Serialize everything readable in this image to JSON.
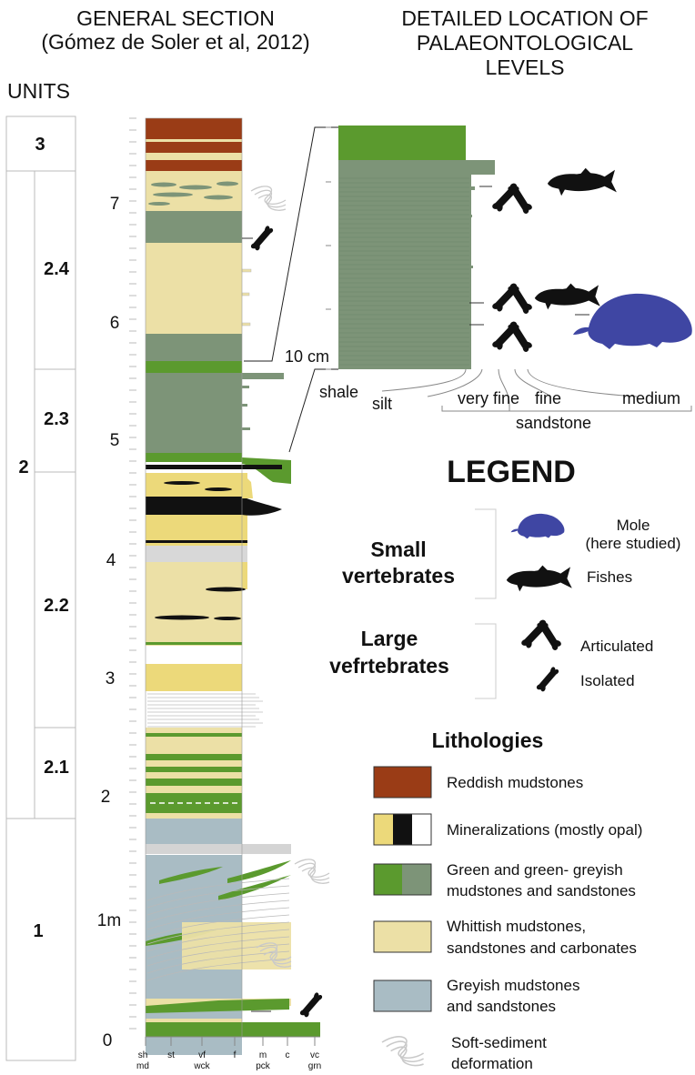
{
  "headers": {
    "general_line1": "GENERAL SECTION",
    "general_line2": "(Gómez de Soler et al, 2012)",
    "detailed_line1": "DETAILED LOCATION OF",
    "detailed_line2": "PALAEONTOLOGICAL",
    "detailed_line3": "LEVELS",
    "units": "UNITS"
  },
  "units": {
    "u1": "1",
    "u2": "2",
    "u3": "3",
    "u21": "2.1",
    "u22": "2.2",
    "u23": "2.3",
    "u24": "2.4"
  },
  "scale": {
    "ticks": [
      "0",
      "1m",
      "2",
      "3",
      "4",
      "5",
      "6",
      "7"
    ],
    "detail": "10 cm"
  },
  "grain_axis": {
    "top": [
      "sh",
      "st",
      "vf",
      "f",
      "m",
      "c",
      "vc"
    ],
    "bottom": [
      "md",
      "wck",
      "pck",
      "grn"
    ]
  },
  "detail_axis": {
    "shale": "shale",
    "silt": "silt",
    "very_fine": "very fine",
    "fine": "fine",
    "medium": "medium",
    "sandstone": "sandstone"
  },
  "legend": {
    "title": "LEGEND",
    "small_line1": "Small",
    "small_line2": "vertebrates",
    "large_line1": "Large",
    "large_line2": "vefrtebrates",
    "mole_line1": "Mole",
    "mole_line2": "(here studied)",
    "fishes": "Fishes",
    "articulated": "Articulated",
    "isolated": "Isolated",
    "lith_title": "Lithologies",
    "reddish": "Reddish  mudstones",
    "mineral": "Mineralizations (mostly opal)",
    "green_line1": "Green and green- greyish",
    "green_line2": "mudstones and sandstones",
    "white_line1": "Whittish mudstones,",
    "white_line2": "sandstones and carbonates",
    "grey_line1": "Greyish mudstones",
    "grey_line2": "and sandstones",
    "soft_line1": "Soft-sediment",
    "soft_line2": "deformation"
  },
  "colors": {
    "reddish": "#9a3c16",
    "mineral_yellow": "#ecd97a",
    "mineral_black": "#111111",
    "green": "#5b9a2e",
    "green_grey": "#7d9478",
    "whitish": "#ece0a6",
    "greyish": "#a9bcc4",
    "mole": "#3f46a3"
  },
  "icons": [
    "articulated-bone-icon",
    "isolated-bone-icon",
    "fish-icon",
    "mole-icon",
    "soft-sediment-deformation-icon"
  ]
}
